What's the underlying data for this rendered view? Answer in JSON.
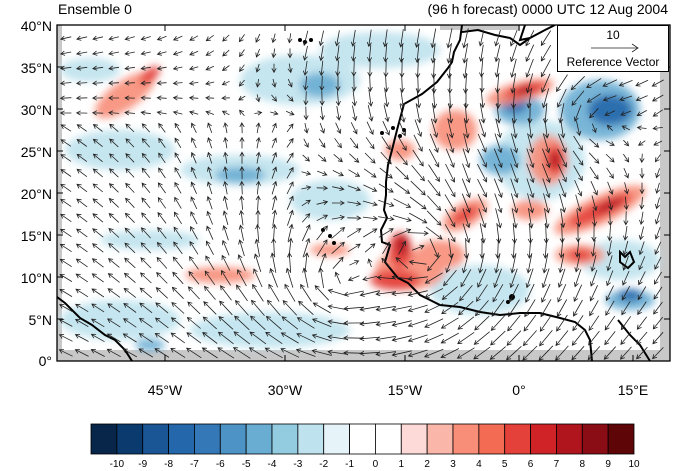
{
  "title_left": "Ensemble 0",
  "title_right": "(96 h forecast) 0000 UTC 12 Aug 2004",
  "reference_vector": {
    "magnitude": "10",
    "label": "Reference Vector"
  },
  "lat_labels": [
    "40°N",
    "35°N",
    "30°N",
    "25°N",
    "20°N",
    "15°N",
    "10°N",
    "5°N",
    "0°"
  ],
  "lon_labels": [
    "45°W",
    "30°W",
    "15°W",
    "0°",
    "15°E"
  ],
  "colorbar": {
    "labels": [
      "-10",
      "-9",
      "-8",
      "-7",
      "-6",
      "-5",
      "-4",
      "-3",
      "-2",
      "-1",
      "0",
      "1",
      "2",
      "3",
      "4",
      "5",
      "6",
      "7",
      "8",
      "9",
      "10"
    ],
    "colors": [
      "#08264a",
      "#0b3a6e",
      "#1a5596",
      "#2468ab",
      "#3578b8",
      "#4d93c6",
      "#6aadd3",
      "#93cbe0",
      "#bfe3ee",
      "#e6f4fa",
      "#ffffff",
      "#ffffff",
      "#fddad7",
      "#fbb6aa",
      "#f88d78",
      "#f26b52",
      "#e4413a",
      "#cf2327",
      "#b0141d",
      "#8a0c14",
      "#5e0508"
    ]
  },
  "map": {
    "lon_range": [
      -62,
      20
    ],
    "lat_range": [
      0,
      40
    ],
    "colors": {
      "coast": "#000000",
      "missing": "#c8c8c8",
      "vector": "#222222"
    }
  }
}
